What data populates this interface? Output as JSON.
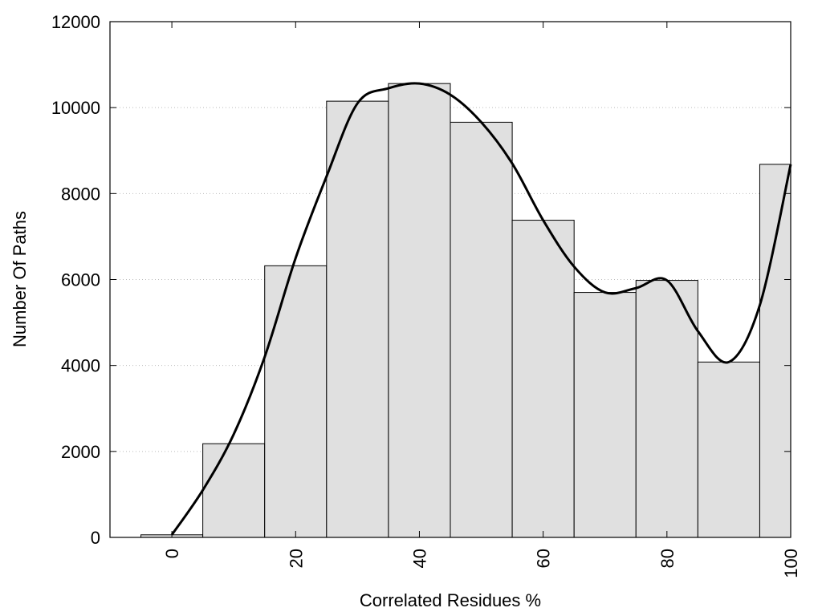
{
  "chart_data": {
    "type": "bar",
    "title": "",
    "xlabel": "Correlated Residues %",
    "ylabel": "Number Of Paths",
    "bar_color": "#e0e0e0",
    "edge_color": "#000000",
    "curve_color": "#000000",
    "bin_width": 10,
    "bins": [
      {
        "x": 0,
        "value": 60
      },
      {
        "x": 10,
        "value": 2180
      },
      {
        "x": 20,
        "value": 6320
      },
      {
        "x": 30,
        "value": 10150
      },
      {
        "x": 40,
        "value": 10560
      },
      {
        "x": 50,
        "value": 9660
      },
      {
        "x": 60,
        "value": 7380
      },
      {
        "x": 70,
        "value": 5700
      },
      {
        "x": 80,
        "value": 5980
      },
      {
        "x": 90,
        "value": 4080
      },
      {
        "x": 100,
        "value": 8680
      }
    ],
    "curve": {
      "x": [
        0,
        5,
        10,
        15,
        20,
        25,
        30,
        35,
        40,
        45,
        50,
        55,
        60,
        65,
        70,
        75,
        80,
        85,
        90,
        95,
        100
      ],
      "y": [
        60,
        1100,
        2400,
        4200,
        6500,
        8400,
        10100,
        10450,
        10560,
        10300,
        9660,
        8700,
        7380,
        6300,
        5700,
        5800,
        5980,
        4800,
        4080,
        5400,
        8680
      ]
    },
    "xlim": [
      -10,
      100
    ],
    "ylim": [
      0,
      12000
    ],
    "xticks": [
      "0",
      "20",
      "40",
      "60",
      "80",
      "100"
    ],
    "xtick_values": [
      0,
      20,
      40,
      60,
      80,
      100
    ],
    "yticks": [
      "0",
      "2000",
      "4000",
      "6000",
      "8000",
      "10000",
      "12000"
    ],
    "ytick_values": [
      0,
      2000,
      4000,
      6000,
      8000,
      10000,
      12000
    ],
    "grid": "y-dotted"
  }
}
